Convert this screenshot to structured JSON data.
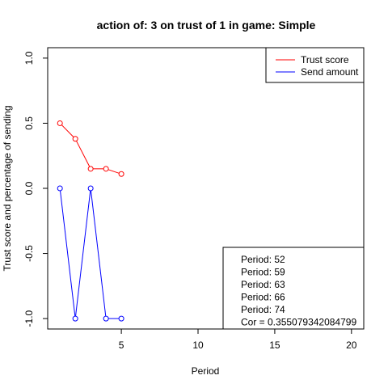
{
  "chart_data": {
    "type": "line",
    "title": "action of:  3  on trust of  1 in game:  Simple",
    "xlabel": "Period",
    "ylabel": "Trust score and percentage of sending",
    "xlim": [
      0.2,
      20.8
    ],
    "ylim": [
      -1.08,
      1.08
    ],
    "x_ticks": [
      5,
      10,
      15,
      20
    ],
    "y_ticks": [
      -1.0,
      -0.5,
      0.0,
      0.5,
      1.0
    ],
    "x_tick_labels": [
      "5",
      "10",
      "15",
      "20"
    ],
    "y_tick_labels": [
      "-1.0",
      "-0.5",
      "0.0",
      "0.5",
      "1.0"
    ],
    "series": [
      {
        "name": "Trust score",
        "color": "#ff0000",
        "x": [
          1,
          2,
          3,
          4,
          5
        ],
        "y": [
          0.5,
          0.38,
          0.15,
          0.15,
          0.11
        ]
      },
      {
        "name": "Send amount",
        "color": "#0000ff",
        "x": [
          1,
          2,
          3,
          4,
          5
        ],
        "y": [
          0.0,
          -1.0,
          0.0,
          -1.0,
          -1.0
        ]
      }
    ],
    "legend_position": "top-right",
    "info_lines": [
      "Period:  52",
      "Period:  59",
      "Period:  63",
      "Period:  66",
      "Period:  74",
      "Cor =  0.355079342084799"
    ],
    "info_position": "bottom-right"
  }
}
